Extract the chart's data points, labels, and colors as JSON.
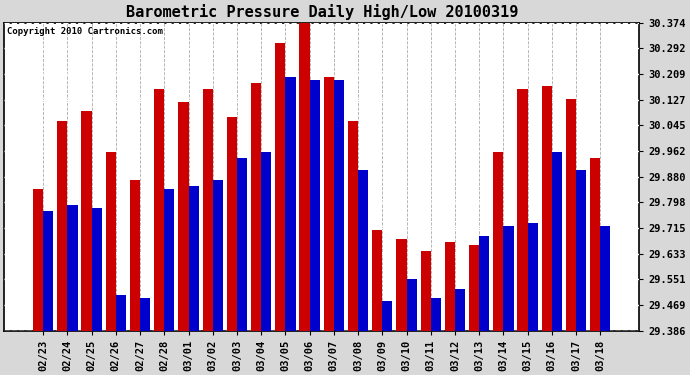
{
  "title": "Barometric Pressure Daily High/Low 20100319",
  "copyright": "Copyright 2010 Cartronics.com",
  "dates": [
    "02/23",
    "02/24",
    "02/25",
    "02/26",
    "02/27",
    "02/28",
    "03/01",
    "03/02",
    "03/03",
    "03/04",
    "03/05",
    "03/06",
    "03/07",
    "03/08",
    "03/09",
    "03/10",
    "03/11",
    "03/12",
    "03/13",
    "03/14",
    "03/15",
    "03/16",
    "03/17",
    "03/18"
  ],
  "highs": [
    29.84,
    30.06,
    30.09,
    29.96,
    29.87,
    30.16,
    30.12,
    30.16,
    30.07,
    30.18,
    30.31,
    30.374,
    30.2,
    30.06,
    29.71,
    29.68,
    29.64,
    29.67,
    29.66,
    29.96,
    30.16,
    30.17,
    30.13,
    29.94
  ],
  "lows": [
    29.77,
    29.79,
    29.78,
    29.5,
    29.49,
    29.84,
    29.85,
    29.87,
    29.94,
    29.96,
    30.2,
    30.19,
    30.19,
    29.9,
    29.48,
    29.55,
    29.49,
    29.52,
    29.69,
    29.72,
    29.73,
    29.96,
    29.9,
    29.72
  ],
  "high_color": "#cc0000",
  "low_color": "#0000cc",
  "ylim_min": 29.386,
  "ylim_max": 30.374,
  "yticks": [
    29.386,
    29.469,
    29.551,
    29.633,
    29.715,
    29.798,
    29.88,
    29.962,
    30.045,
    30.127,
    30.209,
    30.292,
    30.374
  ],
  "bg_color": "#d8d8d8",
  "plot_bg": "#ffffff",
  "grid_color": "#aaaaaa",
  "title_fontsize": 11,
  "tick_fontsize": 7.5,
  "bar_width": 0.42
}
